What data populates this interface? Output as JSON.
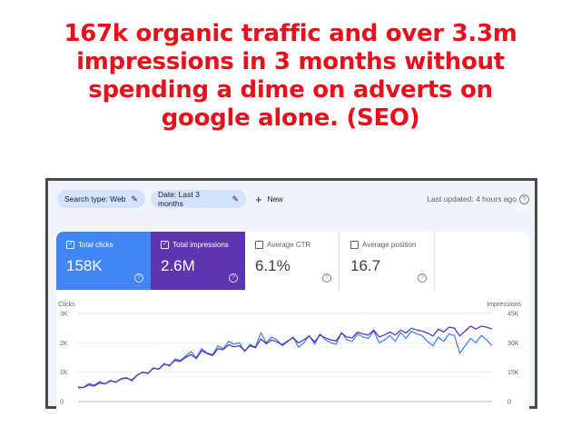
{
  "headline": {
    "line1": "167k organic traffic and over 3.3m",
    "line2": "impressions in 3 months without",
    "line3": "spending a dime on adverts on",
    "line4": "google alone. (SEO)"
  },
  "toolbar": {
    "search_type": "Search type: Web",
    "date": "Date: Last 3 months",
    "new_label": "New",
    "last_updated": "Last updated: 4 hours ago",
    "help_glyph": "?"
  },
  "cards": [
    {
      "label": "Total clicks",
      "value": "158K",
      "checked": true,
      "color": "#4285f4"
    },
    {
      "label": "Total impressions",
      "value": "2.6M",
      "checked": true,
      "color": "#5e35b1"
    },
    {
      "label": "Average CTR",
      "value": "6.1%",
      "checked": false
    },
    {
      "label": "Average position",
      "value": "16.7",
      "checked": false
    }
  ],
  "chart_data": {
    "type": "line",
    "left_axis_label": "Clicks",
    "right_axis_label": "Impressions",
    "left_ticks": [
      "3K",
      "2K",
      "1K",
      "0"
    ],
    "right_ticks": [
      "45K",
      "30K",
      "15K",
      "0"
    ],
    "left_ylim": [
      0,
      3000
    ],
    "right_ylim": [
      0,
      45000
    ],
    "grid": true,
    "series": [
      {
        "name": "Clicks",
        "axis": "left",
        "color": "#4285f4",
        "values": [
          500,
          480,
          620,
          560,
          680,
          600,
          720,
          650,
          780,
          820,
          700,
          900,
          1000,
          950,
          1150,
          1100,
          1300,
          1200,
          1450,
          1400,
          1550,
          1700,
          1500,
          1800,
          1650,
          1600,
          1900,
          1800,
          2050,
          1950,
          2000,
          1700,
          1950,
          1850,
          2350,
          2000,
          2200,
          2100,
          1900,
          2050,
          2200,
          1850,
          2000,
          2250,
          1950,
          2300,
          2100,
          2000,
          1950,
          2350,
          2100,
          2050,
          2300,
          2200,
          2150,
          2400,
          2000,
          2100,
          2250,
          2050,
          2350,
          2150,
          2400,
          2300,
          2250,
          2050,
          1900,
          2200,
          2050,
          2300,
          2250,
          1650,
          1900,
          2150,
          2000,
          2250,
          2100,
          1900
        ]
      },
      {
        "name": "Impressions",
        "axis": "right",
        "color": "#5e35b1",
        "values": [
          7000,
          7200,
          8500,
          8000,
          9500,
          9000,
          10500,
          10000,
          11500,
          12000,
          11000,
          13500,
          15000,
          14500,
          17000,
          16500,
          19000,
          18500,
          21000,
          20500,
          22500,
          24000,
          22000,
          26000,
          24500,
          23500,
          27000,
          26500,
          29000,
          28000,
          28500,
          26000,
          28500,
          27500,
          32000,
          29500,
          31500,
          30500,
          29000,
          31000,
          32500,
          30000,
          31500,
          33500,
          30500,
          34000,
          32500,
          31500,
          31000,
          35000,
          33000,
          32500,
          35500,
          34500,
          34000,
          36500,
          33000,
          34000,
          35500,
          34000,
          36500,
          35000,
          37500,
          36500,
          36000,
          35000,
          33500,
          37000,
          35500,
          38000,
          37500,
          33500,
          36000,
          38500,
          37000,
          38500,
          38000,
          37000
        ]
      }
    ]
  }
}
